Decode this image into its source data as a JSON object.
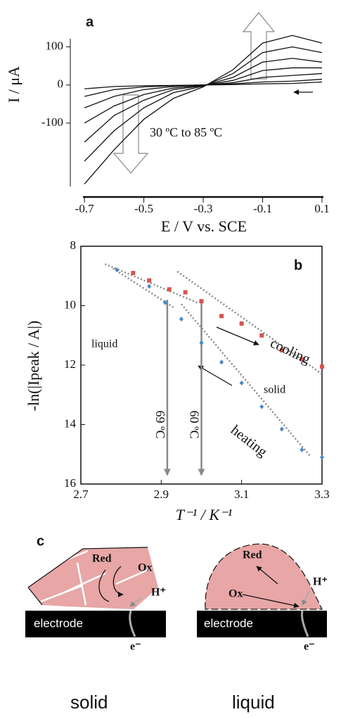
{
  "chart_data": [
    {
      "type": "line",
      "panel": "a",
      "annotation": "30 ºC to 85 ºC",
      "xlabel": "E / V vs. SCE",
      "ylabel": "I / μA",
      "x": [
        -0.7,
        -0.6,
        -0.5,
        -0.4,
        -0.3,
        -0.2,
        -0.1,
        0,
        0.1
      ],
      "series": [
        {
          "color": "#111111",
          "values": [
            -260,
            -170,
            -90,
            -35,
            -5,
            40,
            110,
            130,
            110
          ]
        },
        {
          "color": "#111111",
          "values": [
            -200,
            -120,
            -60,
            -20,
            -3,
            30,
            85,
            100,
            85
          ]
        },
        {
          "color": "#111111",
          "values": [
            -150,
            -80,
            -40,
            -12,
            -2,
            20,
            60,
            70,
            60
          ]
        },
        {
          "color": "#111111",
          "values": [
            -100,
            -55,
            -25,
            -8,
            -1,
            12,
            38,
            45,
            45
          ]
        },
        {
          "color": "#111111",
          "values": [
            -60,
            -30,
            -12,
            -4,
            0,
            6,
            20,
            25,
            30
          ]
        },
        {
          "color": "#111111",
          "values": [
            -30,
            -12,
            -5,
            -2,
            0,
            3,
            8,
            10,
            15
          ]
        },
        {
          "color": "#111111",
          "values": [
            -10,
            -4,
            -2,
            -1,
            0,
            1,
            3,
            4,
            8
          ]
        }
      ],
      "xlim": [
        -0.75,
        0.1
      ],
      "xticks": [
        -0.7,
        -0.5,
        -0.3,
        -0.1,
        0.1
      ],
      "ylim": [
        -270,
        140
      ],
      "yticks": [
        -100,
        0,
        100
      ]
    },
    {
      "type": "scatter",
      "panel": "b",
      "xlabel": "T⁻¹ / K⁻¹",
      "ylabel": "-ln(|Ipeak / A|)",
      "series": [
        {
          "color": "#d9534f",
          "marker": "square",
          "x": [
            2.83,
            2.87,
            2.92,
            2.96,
            3.0,
            3.05,
            3.1,
            3.15,
            3.2,
            3.25,
            3.3
          ],
          "values": [
            8.9,
            9.15,
            9.45,
            9.55,
            9.85,
            10.35,
            10.6,
            11.0,
            11.5,
            11.8,
            12.05
          ]
        },
        {
          "color": "#4a86c8",
          "marker": "diamond",
          "x": [
            2.79,
            2.87,
            2.91,
            2.95,
            3.0,
            3.05,
            3.1,
            3.15,
            3.2,
            3.25,
            3.3
          ],
          "values": [
            8.8,
            9.35,
            9.9,
            10.45,
            11.25,
            11.9,
            12.6,
            13.4,
            14.15,
            14.85,
            15.1
          ]
        }
      ],
      "fits": [
        {
          "x": [
            2.76,
            2.99
          ],
          "values": [
            8.6,
            9.9
          ]
        },
        {
          "x": [
            2.78,
            2.93
          ],
          "values": [
            8.75,
            10.05
          ]
        },
        {
          "x": [
            2.94,
            3.3
          ],
          "values": [
            8.85,
            12.3
          ]
        },
        {
          "x": [
            2.95,
            3.27
          ],
          "values": [
            9.95,
            15.05
          ]
        }
      ],
      "transitions": [
        {
          "label": "69 ºC",
          "x": 2.915,
          "from": 9.8,
          "to": 15.7
        },
        {
          "label": "60 ºC",
          "x": 3.0,
          "from": 9.8,
          "to": 15.7
        }
      ],
      "notes": {
        "cooling": "cooling",
        "heating": "heating",
        "liquid": "liquid",
        "solid": "solid"
      },
      "xlim": [
        2.7,
        3.3
      ],
      "xticks": [
        2.7,
        2.9,
        3.1,
        3.3
      ],
      "ylim": [
        16,
        8
      ],
      "yticks": [
        8,
        10,
        12,
        14,
        16
      ]
    }
  ],
  "diagram": {
    "panel": "c",
    "electrode": "electrode",
    "red": "Red",
    "ox": "Ox",
    "proton": "H⁺",
    "electron": "e⁻",
    "solid": "solid",
    "liquid": "liquid"
  }
}
